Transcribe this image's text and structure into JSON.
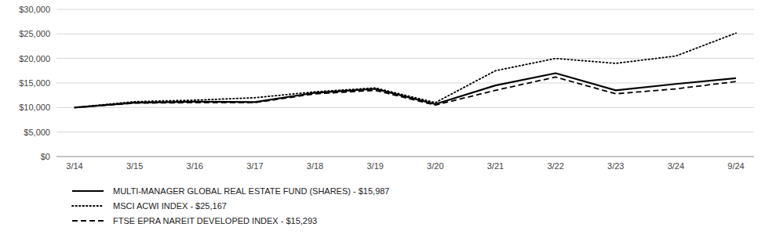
{
  "chart_data": {
    "type": "line",
    "categories": [
      "3/14",
      "3/15",
      "3/16",
      "3/17",
      "3/18",
      "3/19",
      "3/20",
      "3/21",
      "3/22",
      "3/23",
      "3/24",
      "9/24"
    ],
    "series": [
      {
        "name": "MULTI-MANAGER GLOBAL REAL ESTATE FUND (SHARES) - $15,987",
        "color": "#000000",
        "line_style": "solid",
        "values": [
          10000,
          11000,
          11200,
          11100,
          13000,
          13800,
          10700,
          14500,
          17000,
          13500,
          14800,
          15987
        ]
      },
      {
        "name": "MSCI ACWI INDEX - $25,167",
        "color": "#000000",
        "line_style": "dotted",
        "values": [
          10000,
          11200,
          11500,
          12000,
          13200,
          14000,
          11000,
          17500,
          20000,
          19000,
          20500,
          25167
        ]
      },
      {
        "name": "FTSE EPRA NAREIT DEVELOPED INDEX - $15,293",
        "color": "#000000",
        "line_style": "dashed",
        "values": [
          10000,
          10900,
          11000,
          11000,
          12800,
          13500,
          10500,
          13500,
          16200,
          12800,
          13800,
          15293
        ]
      }
    ],
    "ylim": [
      0,
      30000
    ],
    "yticks": [
      {
        "value": 0,
        "label": "$0"
      },
      {
        "value": 5000,
        "label": "$5,000"
      },
      {
        "value": 10000,
        "label": "$10,000"
      },
      {
        "value": 15000,
        "label": "$15,000"
      },
      {
        "value": 20000,
        "label": "$20,000"
      },
      {
        "value": 25000,
        "label": "$25,000"
      },
      {
        "value": 30000,
        "label": "$30,000"
      }
    ],
    "grid": true,
    "legend": "bottom"
  }
}
